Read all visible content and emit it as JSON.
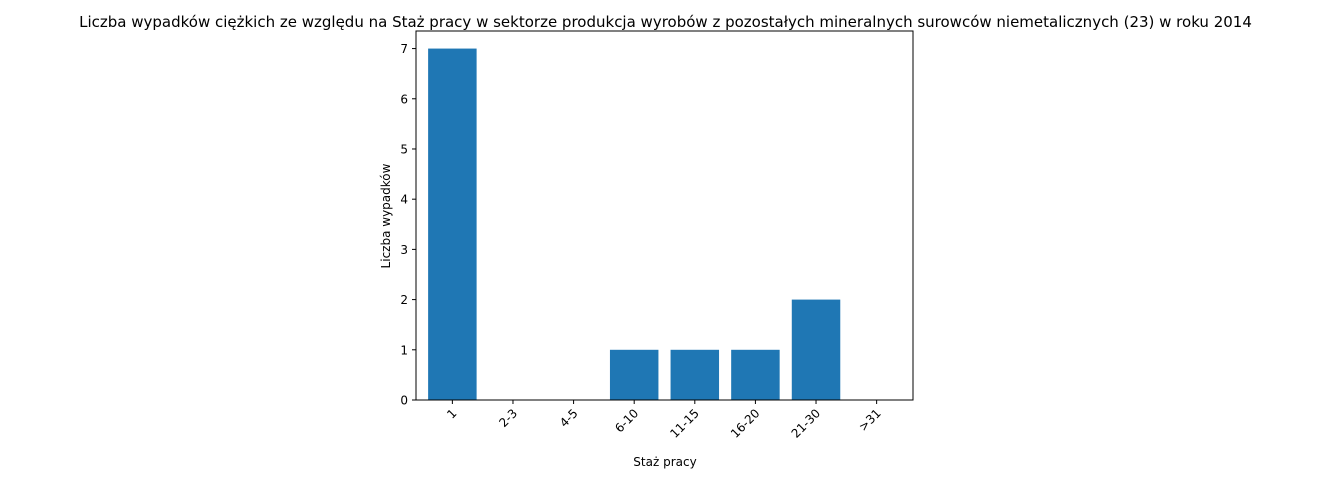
{
  "chart_data": {
    "type": "bar",
    "title": "Liczba wypadków ciężkich ze względu na Staż pracy w sektorze produkcja wyrobów z pozostałych mineralnych surowców niemetalicznych (23)  w roku 2014",
    "xlabel": "Staż pracy",
    "ylabel": "Liczba wypadków",
    "categories": [
      "1",
      "2-3",
      "4-5",
      "6-10",
      "11-15",
      "16-20",
      "21-30",
      ">31"
    ],
    "values": [
      7,
      0,
      0,
      1,
      1,
      1,
      2,
      0
    ],
    "ylim": [
      0,
      7.35
    ],
    "yticks": [
      0,
      1,
      2,
      3,
      4,
      5,
      6,
      7
    ],
    "bar_color": "#1f77b4",
    "grid": false
  }
}
